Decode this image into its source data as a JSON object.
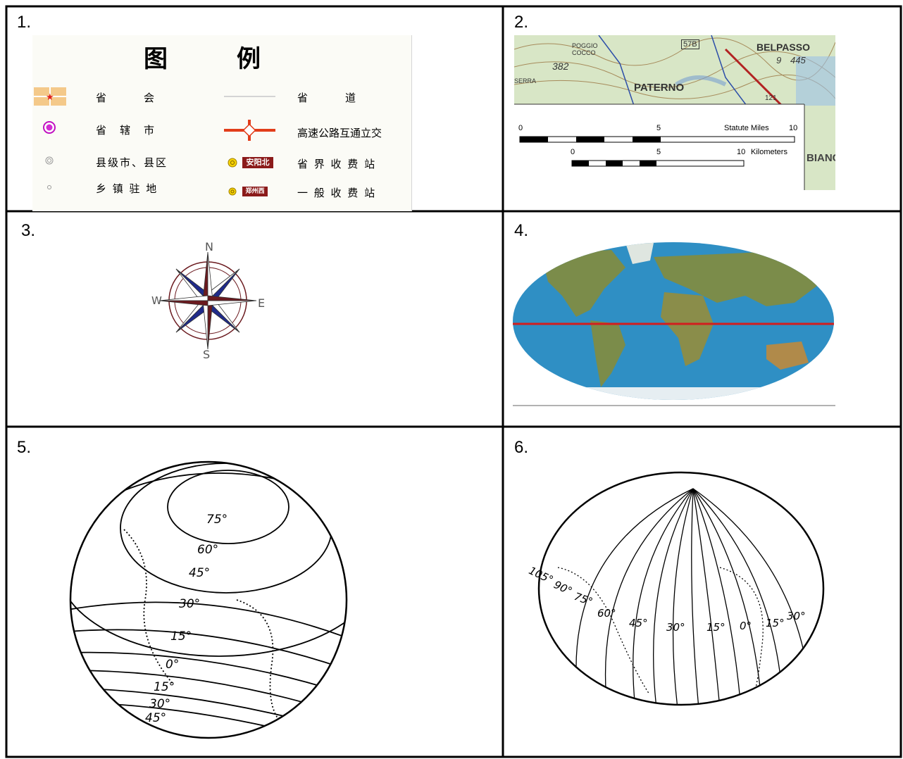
{
  "panels": [
    {
      "number": "1."
    },
    {
      "number": "2."
    },
    {
      "number": "3."
    },
    {
      "number": "4."
    },
    {
      "number": "5."
    },
    {
      "number": "6."
    }
  ],
  "legend": {
    "title_left": "图",
    "title_right": "例",
    "items": [
      {
        "label": "省　　　会",
        "icon": "provincial-capital-icon"
      },
      {
        "label": "省　辖　市",
        "icon": "prefecture-city-icon"
      },
      {
        "label": "县级市、县区",
        "icon": "county-city-icon"
      },
      {
        "label": "乡 镇 驻 地",
        "icon": "town-seat-icon"
      },
      {
        "label": "省　　　道",
        "icon": "provincial-road-icon"
      },
      {
        "label": "高速公路互通立交",
        "icon": "expressway-interchange-icon"
      },
      {
        "label": "省 界 收 费 站",
        "icon": "provincial-toll-station-icon",
        "sign": "安阳北"
      },
      {
        "label": "一 般 收 费 站",
        "icon": "general-toll-station-icon",
        "sign": "郑州西"
      }
    ]
  },
  "scale_map": {
    "place_labels": [
      "BELPASSO",
      "PATERNO",
      "POGGIO COCCO",
      "382",
      "SERRA",
      "57B",
      "9",
      "445",
      "121",
      "BIANC"
    ],
    "miles": {
      "title": "Statute Miles",
      "ticks": [
        "0",
        "5",
        "10"
      ]
    },
    "km": {
      "title": "Kilometers",
      "ticks": [
        "0",
        "5",
        "10"
      ]
    }
  },
  "compass": {
    "n": "N",
    "s": "S",
    "e": "E",
    "w": "W",
    "colors": {
      "dark": "#6b1a1f",
      "blue": "#1f2a8a",
      "line": "#333333"
    }
  },
  "world_map": {
    "colors": {
      "ocean": "#2f8fc4",
      "land": "#7b8c4a",
      "equator": "#d21e1e"
    }
  },
  "globe_latitudes": {
    "labels": [
      "75°",
      "60°",
      "45°",
      "30°",
      "15°",
      "0°",
      "15°",
      "30°",
      "45°"
    ]
  },
  "globe_longitudes": {
    "labels": [
      "105°",
      "90°",
      "75°",
      "60°",
      "45°",
      "30°",
      "15°",
      "0°",
      "15°",
      "30°"
    ]
  }
}
